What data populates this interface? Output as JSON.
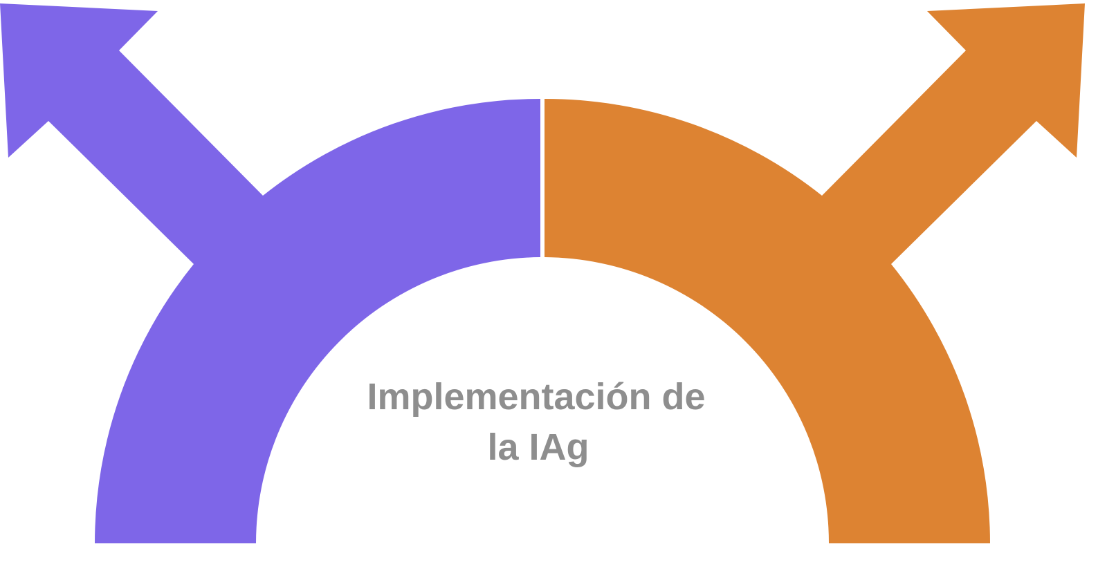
{
  "center_label": {
    "lines": [
      "Implementación de",
      "la IAg"
    ]
  }
}
